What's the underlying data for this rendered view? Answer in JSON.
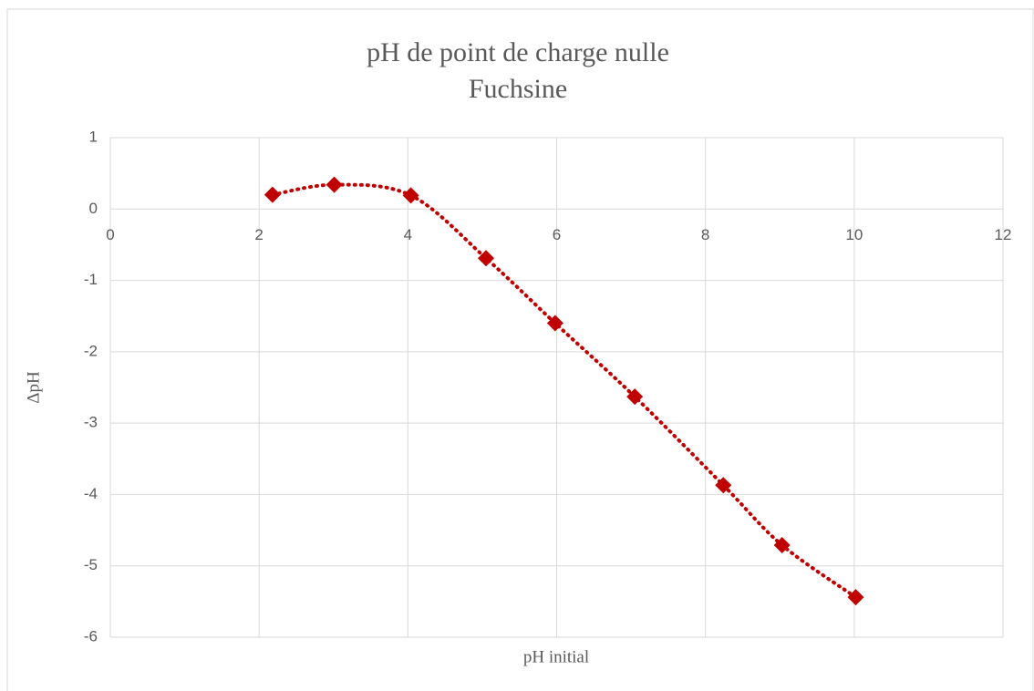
{
  "chart_data": {
    "type": "scatter",
    "title": "pH de point de charge nulle",
    "subtitle": "Fuchsine",
    "x_label": "pH initial",
    "y_label": "ΔpH",
    "xlim": [
      0,
      12
    ],
    "xticks": [
      0,
      2,
      4,
      6,
      8,
      10,
      12
    ],
    "ylim": [
      -6,
      1
    ],
    "yticks": [
      1,
      0,
      -1,
      -2,
      -3,
      -4,
      -5,
      -6
    ],
    "grid": true,
    "series": [
      {
        "color": "#c00000",
        "x": [
          2.18,
          3.01,
          4.04,
          5.05,
          5.98,
          7.05,
          8.24,
          9.03,
          10.02
        ],
        "values": [
          0.2,
          0.34,
          0.19,
          -0.69,
          -1.6,
          -2.63,
          -3.87,
          -4.71,
          -5.44
        ]
      }
    ]
  }
}
